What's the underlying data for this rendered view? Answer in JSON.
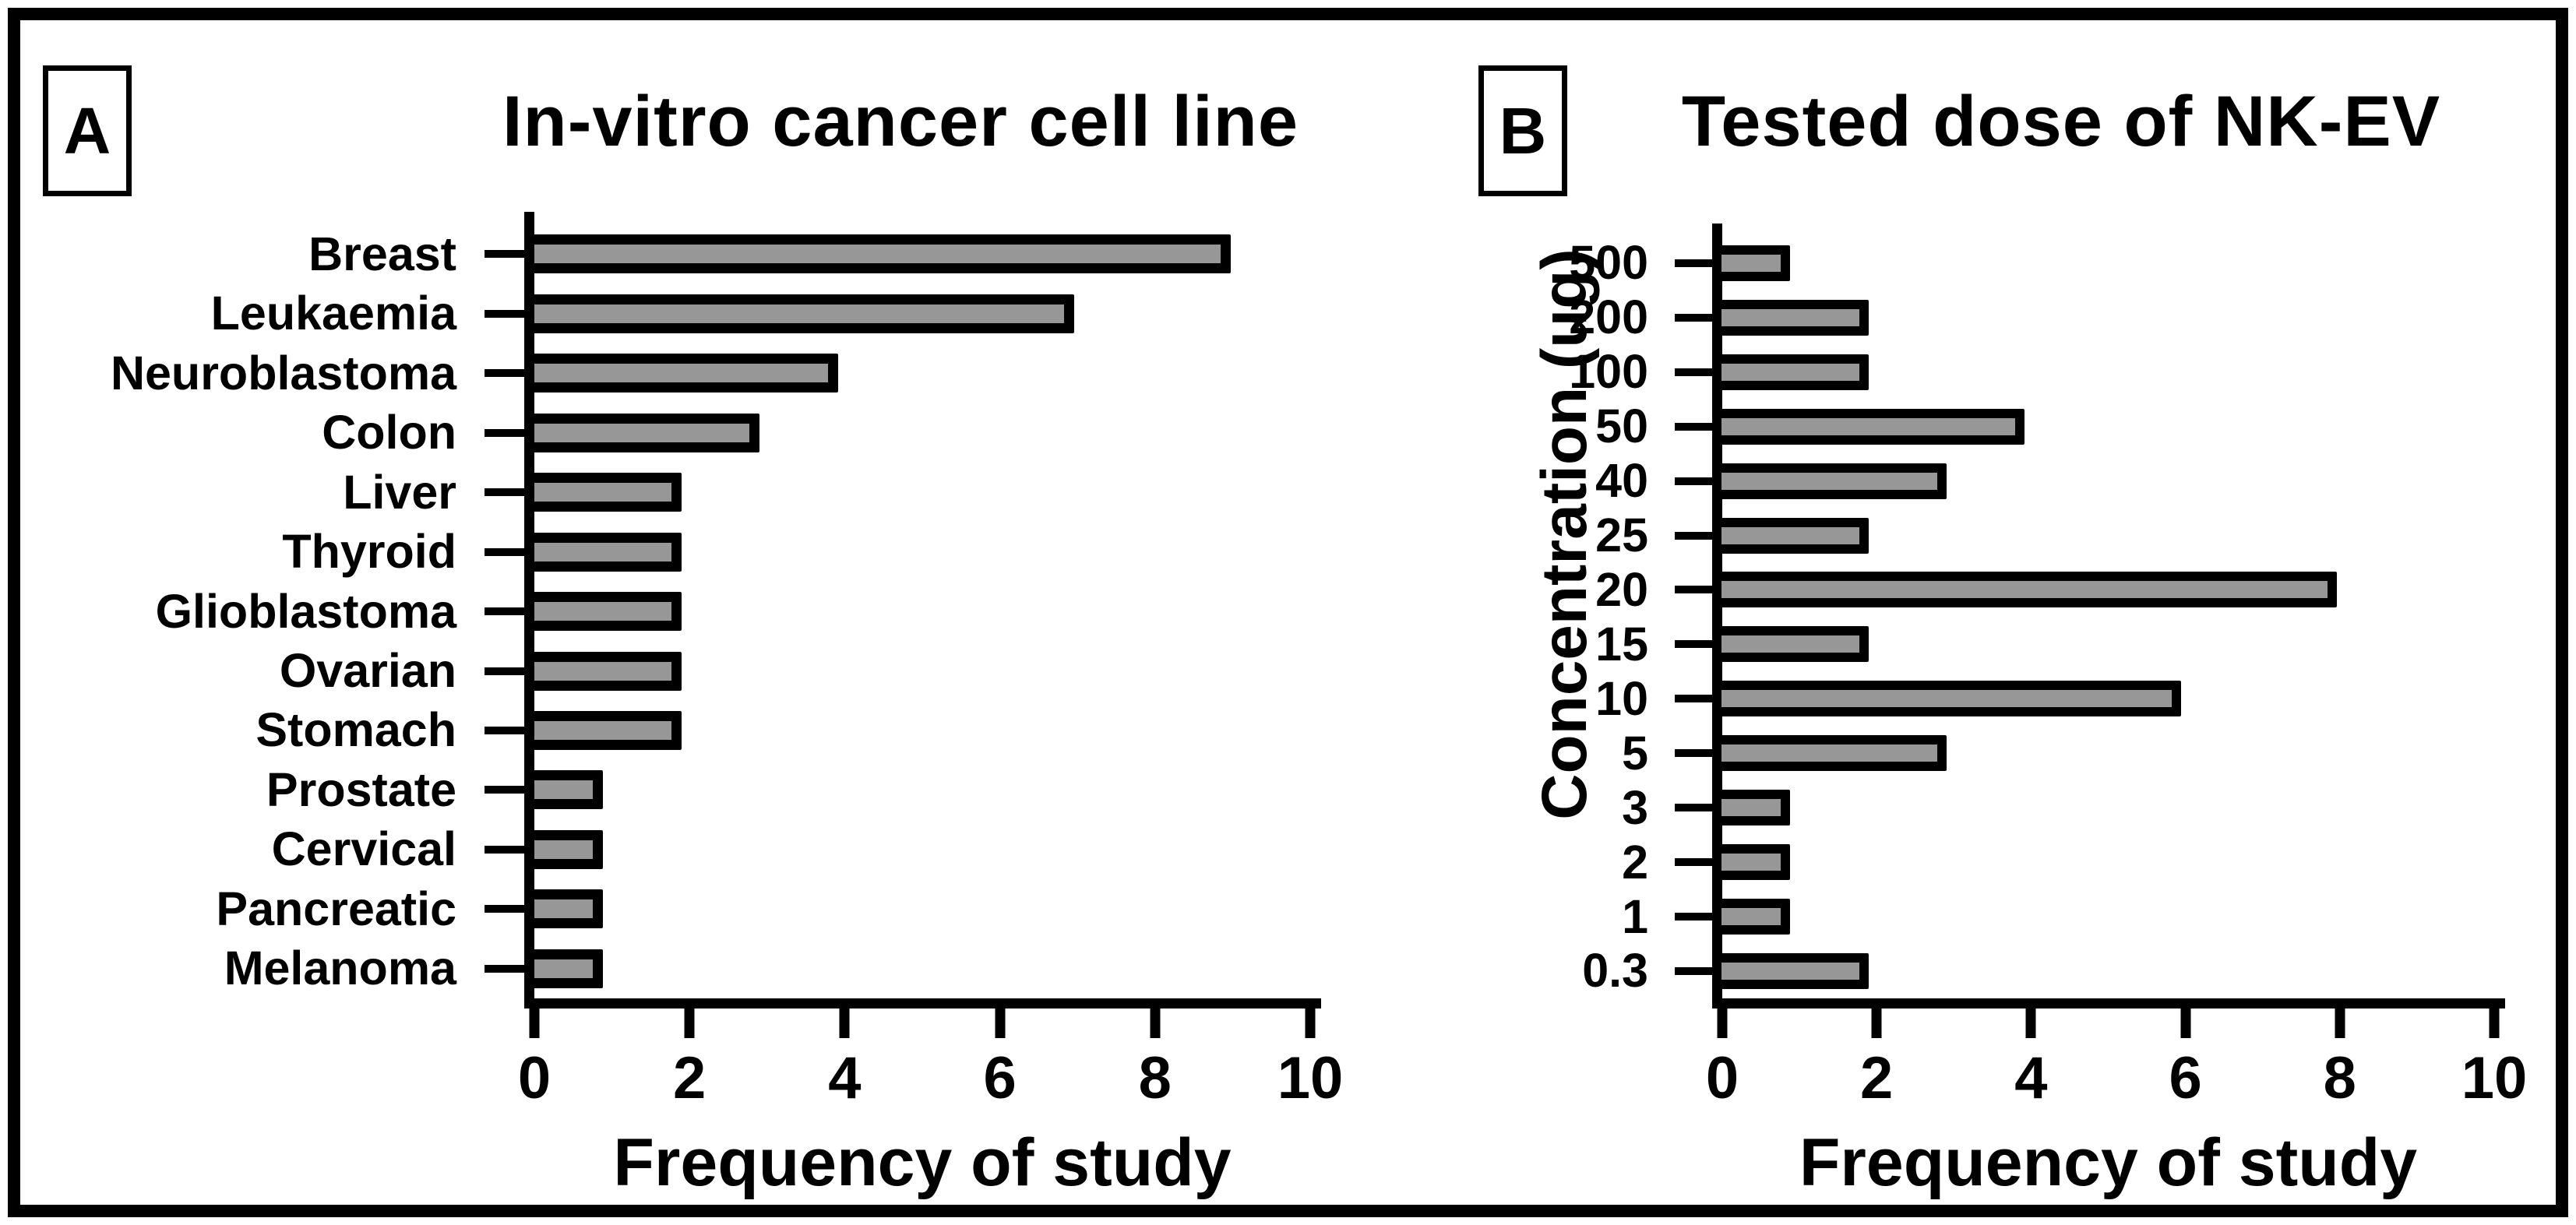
{
  "chart_data": [
    {
      "type": "bar",
      "orientation": "horizontal",
      "panel_label": "A",
      "title": "In-vitro cancer cell line",
      "xlabel": "Frequency of study",
      "ylabel": "",
      "categories": [
        "Breast",
        "Leukaemia",
        "Neuroblastoma",
        "Colon",
        "Liver",
        "Thyroid",
        "Glioblastoma",
        "Ovarian",
        "Stomach",
        "Prostate",
        "Cervical",
        "Pancreatic",
        "Melanoma"
      ],
      "values": [
        9,
        7,
        4,
        3,
        2,
        2,
        2,
        2,
        2,
        1,
        1,
        1,
        1
      ],
      "xlim": [
        0,
        10
      ],
      "xticks": [
        0,
        2,
        4,
        6,
        8,
        10
      ],
      "grid": false,
      "legend": "none"
    },
    {
      "type": "bar",
      "orientation": "horizontal",
      "panel_label": "B",
      "title": "Tested dose of NK-EV",
      "xlabel": "Frequency of study",
      "ylabel": "Concentration (ug)",
      "categories": [
        "500",
        "200",
        "100",
        "50",
        "40",
        "25",
        "20",
        "15",
        "10",
        "5",
        "3",
        "2",
        "1",
        "0.3"
      ],
      "values": [
        1,
        2,
        2,
        4,
        3,
        2,
        8,
        2,
        6,
        3,
        1,
        1,
        1,
        2
      ],
      "xlim": [
        0,
        10
      ],
      "xticks": [
        0,
        2,
        4,
        6,
        8,
        10
      ],
      "grid": false,
      "legend": "none"
    }
  ],
  "colors": {
    "bar_fill": "#979797",
    "bar_border": "#000000",
    "axis": "#000000",
    "text": "#000000",
    "background": "#ffffff",
    "frame_border": "#000000"
  }
}
